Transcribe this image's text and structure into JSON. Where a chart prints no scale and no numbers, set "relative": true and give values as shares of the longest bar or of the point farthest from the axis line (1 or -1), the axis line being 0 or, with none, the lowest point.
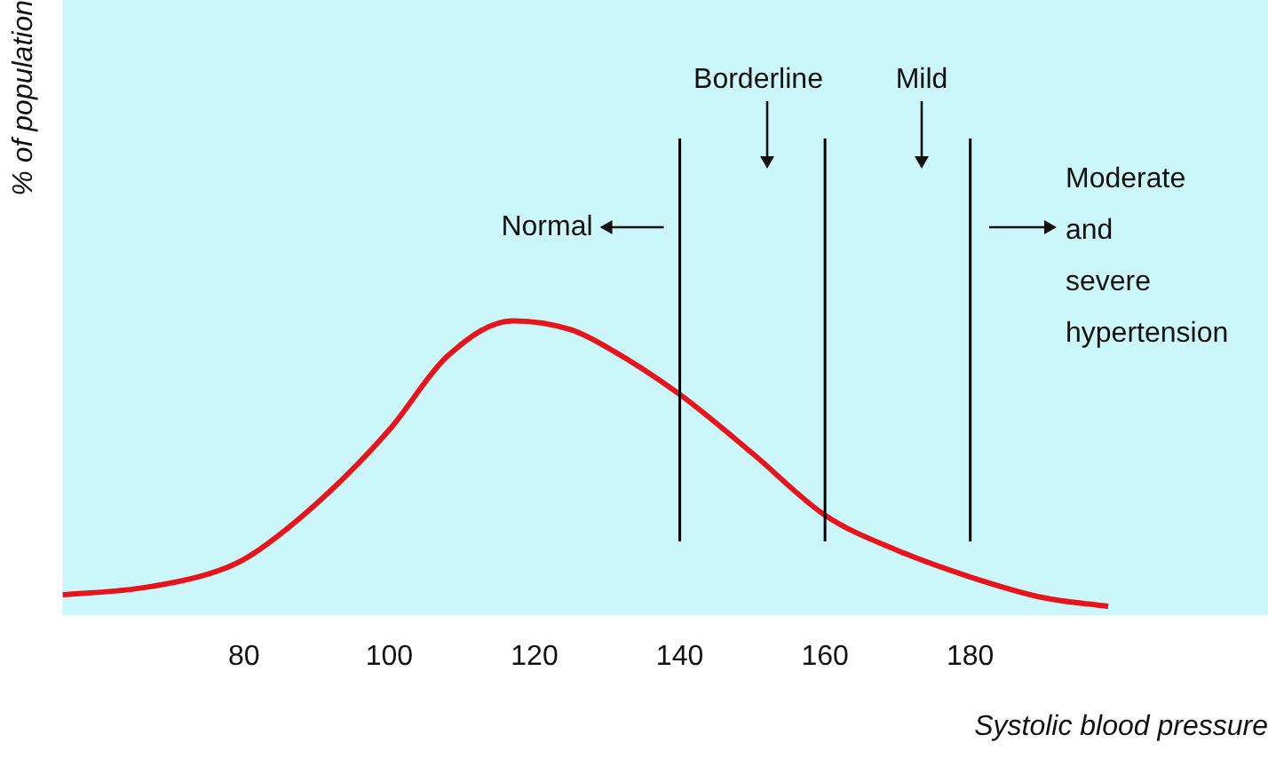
{
  "chart_data": {
    "type": "line",
    "relative": true,
    "xlabel": "Systolic blood pressure",
    "ylabel": "% of population",
    "x": [
      55,
      65,
      75,
      80,
      90,
      100,
      108,
      117,
      125,
      130,
      140,
      150,
      160,
      170,
      180,
      190,
      199
    ],
    "series": [
      {
        "color": "#e8141c",
        "values": [
          0.07,
          0.09,
          0.14,
          0.19,
          0.38,
          0.63,
          0.88,
          1,
          0.97,
          0.91,
          0.75,
          0.55,
          0.34,
          0.22,
          0.13,
          0.06,
          0.03
        ]
      }
    ],
    "xlim": [
      55,
      221
    ],
    "xticks": [
      80,
      100,
      120,
      140,
      160,
      180
    ],
    "grid": false,
    "legend": false,
    "marker": "none",
    "line_style": "solid",
    "ref_lines": [
      {
        "axis": "x",
        "value": 140,
        "color": "#000000"
      },
      {
        "axis": "x",
        "value": 160,
        "color": "#000000"
      },
      {
        "axis": "x",
        "value": 180,
        "color": "#000000"
      }
    ],
    "annotations": [
      "Normal",
      "Borderline",
      "Mild",
      "Moderate and severe hypertension"
    ]
  }
}
